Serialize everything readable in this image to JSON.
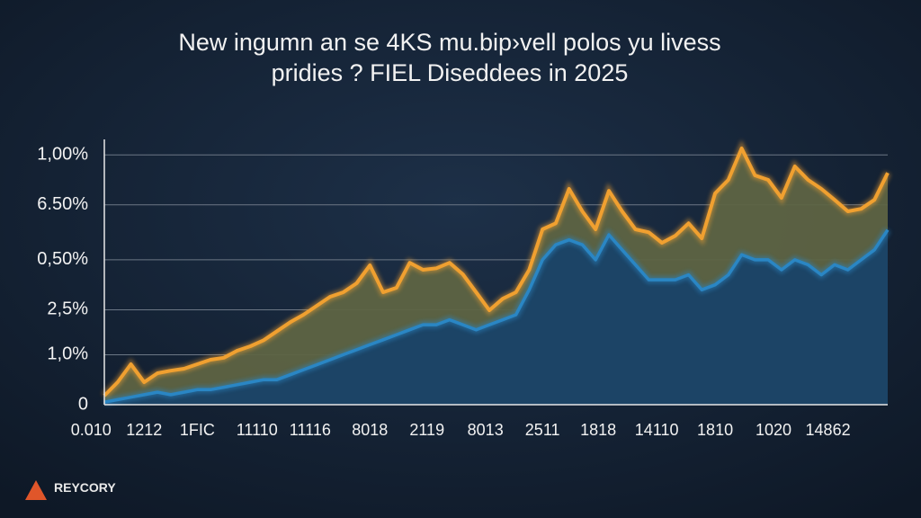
{
  "chart_data": {
    "type": "area",
    "title": [
      "New ingumn an se 4KS mu.bip›vell polos yu livess",
      "pridies ? FIEL Diseddees in 2025"
    ],
    "brand": "REYCORY",
    "x": [
      0,
      1,
      2,
      3,
      4,
      5,
      6,
      7,
      8,
      9,
      10,
      11,
      12,
      13,
      14,
      15,
      16,
      17,
      18,
      19,
      20,
      21,
      22,
      23,
      24,
      25,
      26,
      27,
      28,
      29,
      30,
      31,
      32,
      33,
      34,
      35,
      36,
      37,
      38,
      39,
      40,
      41,
      42,
      43,
      44,
      45,
      46,
      47,
      48,
      49,
      50,
      51,
      52,
      53,
      54,
      55,
      56,
      57,
      58,
      59
    ],
    "xlim": [
      -1,
      59
    ],
    "xticks": [
      {
        "value": -1,
        "label": "0.010"
      },
      {
        "value": 3,
        "label": "1212"
      },
      {
        "value": 7,
        "label": "1FIC"
      },
      {
        "value": 11.5,
        "label": "11110"
      },
      {
        "value": 15.5,
        "label": "11116"
      },
      {
        "value": 20,
        "label": "8018"
      },
      {
        "value": 24.3,
        "label": "2119"
      },
      {
        "value": 28.7,
        "label": "8013"
      },
      {
        "value": 33,
        "label": "2511"
      },
      {
        "value": 37.2,
        "label": "1818"
      },
      {
        "value": 41.6,
        "label": "14110"
      },
      {
        "value": 46,
        "label": "1810"
      },
      {
        "value": 50.4,
        "label": "1020"
      },
      {
        "value": 54.5,
        "label": "14862"
      }
    ],
    "ylim": [
      0,
      5.4
    ],
    "yticks": [
      0,
      {
        "value": 1,
        "label": "1,0%"
      },
      {
        "value": 1.9,
        "label": "2,5%"
      },
      {
        "value": 2.9,
        "label": "0,50%"
      },
      {
        "value": 4,
        "label": "6.50%"
      },
      {
        "value": 5,
        "label": "1,00%"
      }
    ],
    "grid": true,
    "series": [
      {
        "color": "#f0a030",
        "fill": "#5e6443",
        "values": [
          0.18,
          0.45,
          0.81,
          0.45,
          0.63,
          0.68,
          0.72,
          0.81,
          0.9,
          0.94,
          1.08,
          1.17,
          1.29,
          1.47,
          1.65,
          1.8,
          1.98,
          2.16,
          2.25,
          2.43,
          2.79,
          2.25,
          2.34,
          2.84,
          2.7,
          2.73,
          2.84,
          2.61,
          2.25,
          1.89,
          2.12,
          2.25,
          2.7,
          3.51,
          3.63,
          4.32,
          3.87,
          3.51,
          4.28,
          3.87,
          3.51,
          3.45,
          3.24,
          3.38,
          3.63,
          3.33,
          4.23,
          4.5,
          5.13,
          4.59,
          4.5,
          4.14,
          4.77,
          4.5,
          4.32,
          4.1,
          3.87,
          3.92,
          4.1,
          4.64
        ]
      },
      {
        "color": "#2a86c4",
        "fill": "#1c4466",
        "values": [
          0.05,
          0.1,
          0.15,
          0.2,
          0.25,
          0.2,
          0.25,
          0.3,
          0.3,
          0.35,
          0.4,
          0.45,
          0.5,
          0.5,
          0.6,
          0.7,
          0.8,
          0.9,
          1.0,
          1.1,
          1.2,
          1.3,
          1.4,
          1.5,
          1.6,
          1.6,
          1.7,
          1.6,
          1.5,
          1.6,
          1.7,
          1.8,
          2.3,
          2.9,
          3.2,
          3.3,
          3.2,
          2.9,
          3.4,
          3.1,
          2.8,
          2.5,
          2.5,
          2.5,
          2.6,
          2.3,
          2.4,
          2.6,
          3.0,
          2.9,
          2.9,
          2.7,
          2.9,
          2.8,
          2.6,
          2.8,
          2.7,
          2.9,
          3.1,
          3.5
        ]
      }
    ]
  }
}
